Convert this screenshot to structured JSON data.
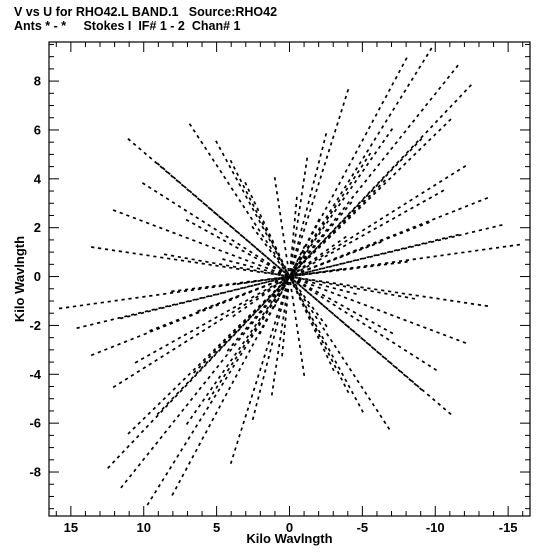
{
  "header": {
    "line1": "V vs U for RHO42.L BAND.1   Source:RHO42",
    "line2": "Ants * - *     Stokes I  IF# 1 - 2  Chan# 1"
  },
  "chart_data": {
    "type": "scatter",
    "title": "V vs U for RHO42.L BAND.1   Source:RHO42",
    "subtitle": "Ants * - *     Stokes I  IF# 1 - 2  Chan# 1",
    "xlabel": "Kilo Wavlngth",
    "ylabel": "Kilo Wavlngth",
    "xlim": [
      16.5,
      -16.5
    ],
    "ylim": [
      -9.8,
      9.6
    ],
    "x_reversed": true,
    "x_ticks": [
      "15",
      "10",
      "5",
      "0",
      "-5",
      "-10",
      "-15"
    ],
    "y_ticks": [
      "8",
      "6",
      "4",
      "2",
      "0",
      "-2",
      "-4",
      "-6",
      "-8"
    ],
    "grid": false,
    "marker_color": "#000000",
    "tracks": [
      {
        "from": [
          -11.5,
          8.6
        ],
        "to": [
          11.5,
          -8.6
        ]
      },
      {
        "from": [
          -9.7,
          9.3
        ],
        "to": [
          9.7,
          -9.3
        ]
      },
      {
        "from": [
          -8.0,
          8.9
        ],
        "to": [
          8.0,
          -8.9
        ]
      },
      {
        "from": [
          -12.4,
          7.8
        ],
        "to": [
          12.4,
          -7.8
        ]
      },
      {
        "from": [
          -4.0,
          7.6
        ],
        "to": [
          4.0,
          -7.6
        ]
      },
      {
        "from": [
          -2.5,
          5.8
        ],
        "to": [
          2.5,
          -5.8
        ]
      },
      {
        "from": [
          -1.2,
          4.8
        ],
        "to": [
          1.2,
          -4.8
        ]
      },
      {
        "from": [
          -5.5,
          5.0
        ],
        "to": [
          5.5,
          -5.0
        ]
      },
      {
        "from": [
          -7.0,
          6.0
        ],
        "to": [
          7.0,
          -6.0
        ]
      },
      {
        "from": [
          -4.2,
          3.0
        ],
        "to": [
          4.2,
          -3.0
        ]
      },
      {
        "from": [
          -10.5,
          3.5
        ],
        "to": [
          10.5,
          -3.5
        ]
      },
      {
        "from": [
          -12.0,
          4.5
        ],
        "to": [
          12.0,
          -4.5
        ]
      },
      {
        "from": [
          -13.5,
          3.2
        ],
        "to": [
          13.5,
          -3.2
        ]
      },
      {
        "from": [
          -15.7,
          1.3
        ],
        "to": [
          15.7,
          -1.3
        ]
      },
      {
        "from": [
          -14.5,
          2.1
        ],
        "to": [
          14.5,
          -2.1
        ]
      },
      {
        "from": [
          -11.5,
          1.7
        ],
        "to": [
          11.5,
          -1.7
        ]
      },
      {
        "from": [
          -9.5,
          2.2
        ],
        "to": [
          9.5,
          -2.2
        ]
      },
      {
        "from": [
          -8.0,
          0.6
        ],
        "to": [
          8.0,
          -0.6
        ]
      },
      {
        "from": [
          -6.2,
          1.4
        ],
        "to": [
          6.2,
          -1.4
        ]
      },
      {
        "from": [
          -3.8,
          1.6
        ],
        "to": [
          3.8,
          -1.6
        ]
      },
      {
        "from": [
          -3.5,
          0.3
        ],
        "to": [
          3.5,
          -0.3
        ]
      },
      {
        "from": [
          -2.0,
          2.3
        ],
        "to": [
          2.0,
          -2.3
        ]
      },
      {
        "from": [
          -0.5,
          3.2
        ],
        "to": [
          0.5,
          -3.2
        ]
      },
      {
        "from": [
          -6.5,
          3.9
        ],
        "to": [
          6.5,
          -3.9
        ]
      },
      {
        "from": [
          -9.0,
          5.6
        ],
        "to": [
          9.0,
          -5.6
        ]
      },
      {
        "from": [
          -11.0,
          6.4
        ],
        "to": [
          11.0,
          -6.4
        ]
      },
      {
        "from": [
          5.0,
          5.5
        ],
        "to": [
          -5.0,
          -5.5
        ]
      },
      {
        "from": [
          4.0,
          4.7
        ],
        "to": [
          -4.0,
          -4.7
        ]
      },
      {
        "from": [
          6.8,
          6.2
        ],
        "to": [
          -6.8,
          -6.2
        ]
      },
      {
        "from": [
          3.0,
          3.8
        ],
        "to": [
          -3.0,
          -3.8
        ]
      },
      {
        "from": [
          9.0,
          4.6
        ],
        "to": [
          -9.0,
          -4.6
        ]
      },
      {
        "from": [
          10.0,
          3.8
        ],
        "to": [
          -10.0,
          -3.8
        ]
      },
      {
        "from": [
          7.0,
          2.3
        ],
        "to": [
          -7.0,
          -2.3
        ]
      },
      {
        "from": [
          12.0,
          2.7
        ],
        "to": [
          -12.0,
          -2.7
        ]
      },
      {
        "from": [
          11.0,
          5.6
        ],
        "to": [
          -11.0,
          -5.6
        ]
      },
      {
        "from": [
          2.5,
          2.0
        ],
        "to": [
          -2.5,
          -2.0
        ]
      },
      {
        "from": [
          1.0,
          4.0
        ],
        "to": [
          -1.0,
          -4.0
        ]
      },
      {
        "from": [
          8.5,
          0.9
        ],
        "to": [
          -8.5,
          -0.9
        ]
      },
      {
        "from": [
          13.5,
          1.2
        ],
        "to": [
          -13.5,
          -1.2
        ]
      },
      {
        "from": [
          4.5,
          0.7
        ],
        "to": [
          -4.5,
          -0.7
        ]
      },
      {
        "from": [
          5.5,
          2.8
        ],
        "to": [
          -5.5,
          -2.8
        ]
      },
      {
        "from": [
          -1.0,
          1.2
        ],
        "to": [
          1.0,
          -1.2
        ]
      }
    ]
  }
}
